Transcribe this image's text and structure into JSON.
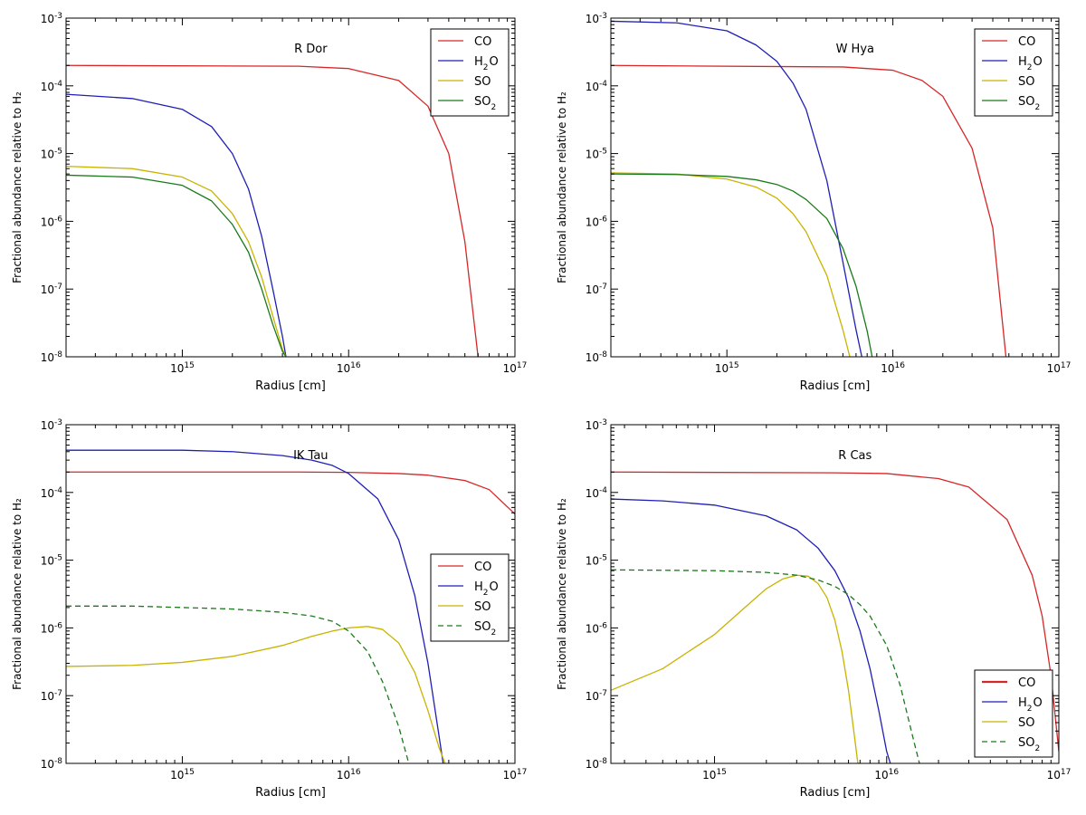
{
  "chart_data": [
    {
      "type": "line",
      "title": "R Dor",
      "xlabel": "Radius [cm]",
      "ylabel": "Fractional abundance relative to H₂",
      "xscale": "log",
      "yscale": "log",
      "xlim": [
        200000000000000.0,
        1e+17
      ],
      "ylim": [
        1e-08,
        0.001
      ],
      "xticks": [
        {
          "mant": "10",
          "exp": "15"
        },
        {
          "mant": "10",
          "exp": "16"
        },
        {
          "mant": "10",
          "exp": "17"
        }
      ],
      "yticks": [
        {
          "mant": "10",
          "exp": "-8"
        },
        {
          "mant": "10",
          "exp": "-7"
        },
        {
          "mant": "10",
          "exp": "-6"
        },
        {
          "mant": "10",
          "exp": "-5"
        },
        {
          "mant": "10",
          "exp": "-4"
        },
        {
          "mant": "10",
          "exp": "-3"
        }
      ],
      "legend_position": "top-right",
      "series": [
        {
          "name": "CO",
          "sub": "",
          "color": "#d62728",
          "dash": "solid",
          "x": [
            200000000000000.0,
            5000000000000000.0,
            1e+16,
            2e+16,
            3e+16,
            4e+16,
            5e+16,
            6e+16
          ],
          "y": [
            0.0002,
            0.000195,
            0.00018,
            0.00012,
            5e-05,
            1e-05,
            5e-07,
            1e-08
          ]
        },
        {
          "name": "H",
          "sub": "2",
          "suffix": "O",
          "color": "#1f1fb4",
          "dash": "solid",
          "x": [
            200000000000000.0,
            500000000000000.0,
            1000000000000000.0,
            1500000000000000.0,
            2000000000000000.0,
            2500000000000000.0,
            3000000000000000.0,
            3500000000000000.0,
            4000000000000000.0,
            4200000000000000.0
          ],
          "y": [
            7.5e-05,
            6.5e-05,
            4.5e-05,
            2.5e-05,
            1e-05,
            3e-06,
            6e-07,
            1e-07,
            2e-08,
            1e-08
          ]
        },
        {
          "name": "SO",
          "sub": "",
          "color": "#c8b400",
          "dash": "solid",
          "x": [
            200000000000000.0,
            500000000000000.0,
            1000000000000000.0,
            1500000000000000.0,
            2000000000000000.0,
            2500000000000000.0,
            3000000000000000.0,
            3500000000000000.0,
            4000000000000000.0,
            4200000000000000.0
          ],
          "y": [
            6.5e-06,
            6e-06,
            4.5e-06,
            2.8e-06,
            1.3e-06,
            5e-07,
            1.5e-07,
            4e-08,
            1.3e-08,
            1e-08
          ]
        },
        {
          "name": "SO",
          "sub": "2",
          "color": "#1a7a1a",
          "dash": "solid",
          "x": [
            200000000000000.0,
            500000000000000.0,
            1000000000000000.0,
            1500000000000000.0,
            2000000000000000.0,
            2500000000000000.0,
            3000000000000000.0,
            3500000000000000.0,
            4000000000000000.0,
            4200000000000000.0
          ],
          "y": [
            4.8e-06,
            4.5e-06,
            3.4e-06,
            2e-06,
            9e-07,
            3.5e-07,
            1e-07,
            3e-08,
            1.2e-08,
            1e-08
          ]
        }
      ]
    },
    {
      "type": "line",
      "title": "W Hya",
      "xlabel": "Radius [cm]",
      "ylabel": "Fractional abundance relative to H₂",
      "xscale": "log",
      "yscale": "log",
      "xlim": [
        200000000000000.0,
        1e+17
      ],
      "ylim": [
        1e-08,
        0.001
      ],
      "xticks": [
        {
          "mant": "10",
          "exp": "15"
        },
        {
          "mant": "10",
          "exp": "16"
        },
        {
          "mant": "10",
          "exp": "17"
        }
      ],
      "yticks": [
        {
          "mant": "10",
          "exp": "-8"
        },
        {
          "mant": "10",
          "exp": "-7"
        },
        {
          "mant": "10",
          "exp": "-6"
        },
        {
          "mant": "10",
          "exp": "-5"
        },
        {
          "mant": "10",
          "exp": "-4"
        },
        {
          "mant": "10",
          "exp": "-3"
        }
      ],
      "legend_position": "top-right",
      "series": [
        {
          "name": "CO",
          "sub": "",
          "color": "#d62728",
          "dash": "solid",
          "x": [
            200000000000000.0,
            5000000000000000.0,
            1e+16,
            1.5e+16,
            2e+16,
            3e+16,
            4e+16,
            4.8e+16
          ],
          "y": [
            0.0002,
            0.00019,
            0.00017,
            0.00012,
            7e-05,
            1.2e-05,
            8e-07,
            1e-08
          ]
        },
        {
          "name": "H",
          "sub": "2",
          "suffix": "O",
          "color": "#1f1fb4",
          "dash": "solid",
          "x": [
            200000000000000.0,
            500000000000000.0,
            1000000000000000.0,
            1500000000000000.0,
            2000000000000000.0,
            2500000000000000.0,
            3000000000000000.0,
            4000000000000000.0,
            5000000000000000.0,
            6000000000000000.0,
            6500000000000000.0
          ],
          "y": [
            0.0009,
            0.00085,
            0.00065,
            0.0004,
            0.00023,
            0.00011,
            4.5e-05,
            4e-06,
            2.5e-07,
            2.5e-08,
            1e-08
          ]
        },
        {
          "name": "SO",
          "sub": "",
          "color": "#c8b400",
          "dash": "solid",
          "x": [
            200000000000000.0,
            500000000000000.0,
            1000000000000000.0,
            1500000000000000.0,
            2000000000000000.0,
            2500000000000000.0,
            3000000000000000.0,
            4000000000000000.0,
            5000000000000000.0,
            5500000000000000.0
          ],
          "y": [
            5.2e-06,
            5e-06,
            4.2e-06,
            3.2e-06,
            2.2e-06,
            1.3e-06,
            7e-07,
            1.6e-07,
            2.5e-08,
            1e-08
          ]
        },
        {
          "name": "SO",
          "sub": "2",
          "color": "#1a7a1a",
          "dash": "solid",
          "x": [
            200000000000000.0,
            500000000000000.0,
            1000000000000000.0,
            1500000000000000.0,
            2000000000000000.0,
            2500000000000000.0,
            3000000000000000.0,
            4000000000000000.0,
            5000000000000000.0,
            6000000000000000.0,
            7000000000000000.0,
            7500000000000000.0
          ],
          "y": [
            5e-06,
            4.9e-06,
            4.6e-06,
            4.1e-06,
            3.5e-06,
            2.8e-06,
            2.1e-06,
            1.1e-06,
            4e-07,
            1.1e-07,
            2.4e-08,
            1e-08
          ]
        }
      ]
    },
    {
      "type": "line",
      "title": "IK Tau",
      "xlabel": "Radius [cm]",
      "ylabel": "Fractional abundance relative to H₂",
      "xscale": "log",
      "yscale": "log",
      "xlim": [
        200000000000000.0,
        1e+17
      ],
      "ylim": [
        1e-08,
        0.001
      ],
      "xticks": [
        {
          "mant": "10",
          "exp": "15"
        },
        {
          "mant": "10",
          "exp": "16"
        },
        {
          "mant": "10",
          "exp": "17"
        }
      ],
      "yticks": [
        {
          "mant": "10",
          "exp": "-8"
        },
        {
          "mant": "10",
          "exp": "-7"
        },
        {
          "mant": "10",
          "exp": "-6"
        },
        {
          "mant": "10",
          "exp": "-5"
        },
        {
          "mant": "10",
          "exp": "-4"
        },
        {
          "mant": "10",
          "exp": "-3"
        }
      ],
      "legend_position": "center-right",
      "series": [
        {
          "name": "CO",
          "sub": "",
          "color": "#d62728",
          "dash": "solid",
          "x": [
            200000000000000.0,
            5000000000000000.0,
            1e+16,
            2e+16,
            3e+16,
            5e+16,
            7e+16,
            1e+17
          ],
          "y": [
            0.0002,
            0.0002,
            0.000198,
            0.00019,
            0.00018,
            0.00015,
            0.00011,
            4.8e-05
          ]
        },
        {
          "name": "H",
          "sub": "2",
          "suffix": "O",
          "color": "#1f1fb4",
          "dash": "solid",
          "x": [
            200000000000000.0,
            1000000000000000.0,
            2000000000000000.0,
            4000000000000000.0,
            6000000000000000.0,
            8000000000000000.0,
            1e+16,
            1.5e+16,
            2e+16,
            2.5e+16,
            3e+16,
            3.5e+16,
            3.7e+16
          ],
          "y": [
            0.00042,
            0.00042,
            0.0004,
            0.00035,
            0.0003,
            0.00025,
            0.00019,
            8e-05,
            2e-05,
            3e-06,
            3e-07,
            2.5e-08,
            1e-08
          ]
        },
        {
          "name": "SO",
          "sub": "",
          "color": "#c8b400",
          "dash": "solid",
          "x": [
            200000000000000.0,
            500000000000000.0,
            1000000000000000.0,
            2000000000000000.0,
            4000000000000000.0,
            6000000000000000.0,
            8000000000000000.0,
            1e+16,
            1.3e+16,
            1.6e+16,
            2e+16,
            2.5e+16,
            3e+16,
            3.5e+16,
            3.8e+16
          ],
          "y": [
            2.7e-07,
            2.8e-07,
            3.1e-07,
            3.8e-07,
            5.5e-07,
            7.5e-07,
            9e-07,
            1e-06,
            1.05e-06,
            9.5e-07,
            6e-07,
            2.2e-07,
            6e-08,
            1.7e-08,
            1e-08
          ]
        },
        {
          "name": "SO",
          "sub": "2",
          "color": "#1a7a1a",
          "dash": "dashed",
          "x": [
            200000000000000.0,
            500000000000000.0,
            1000000000000000.0,
            2000000000000000.0,
            4000000000000000.0,
            6000000000000000.0,
            8000000000000000.0,
            1e+16,
            1.3e+16,
            1.6e+16,
            2e+16,
            2.3e+16
          ],
          "y": [
            2.1e-06,
            2.1e-06,
            2e-06,
            1.9e-06,
            1.7e-06,
            1.5e-06,
            1.25e-06,
            9e-07,
            4.5e-07,
            1.6e-07,
            3.5e-08,
            1e-08
          ]
        }
      ]
    },
    {
      "type": "line",
      "title": "R Cas",
      "xlabel": "Radius [cm]",
      "ylabel": "Fractional abundance relative to H₂",
      "xscale": "log",
      "yscale": "log",
      "xlim": [
        250000000000000.0,
        1e+17
      ],
      "ylim": [
        1e-08,
        0.001
      ],
      "xticks": [
        {
          "mant": "10",
          "exp": "15"
        },
        {
          "mant": "10",
          "exp": "16"
        },
        {
          "mant": "10",
          "exp": "17"
        }
      ],
      "yticks": [
        {
          "mant": "10",
          "exp": "-8"
        },
        {
          "mant": "10",
          "exp": "-7"
        },
        {
          "mant": "10",
          "exp": "-6"
        },
        {
          "mant": "10",
          "exp": "-5"
        },
        {
          "mant": "10",
          "exp": "-4"
        },
        {
          "mant": "10",
          "exp": "-3"
        }
      ],
      "legend_position": "bottom-right",
      "series": [
        {
          "name": "CO",
          "sub": "",
          "color": "#d62728",
          "dash": "solid",
          "x": [
            250000000000000.0,
            5000000000000000.0,
            1e+16,
            2e+16,
            3e+16,
            5e+16,
            7e+16,
            8e+16,
            9e+16,
            1e+17
          ],
          "y": [
            0.0002,
            0.000195,
            0.00019,
            0.00016,
            0.00012,
            4e-05,
            6e-06,
            1.5e-06,
            2e-07,
            1.5e-08
          ]
        },
        {
          "name": "H",
          "sub": "2",
          "suffix": "O",
          "color": "#1f1fb4",
          "dash": "solid",
          "x": [
            250000000000000.0,
            500000000000000.0,
            1000000000000000.0,
            2000000000000000.0,
            3000000000000000.0,
            4000000000000000.0,
            5000000000000000.0,
            6000000000000000.0,
            7000000000000000.0,
            8000000000000000.0,
            9000000000000000.0,
            1e+16,
            1.05e+16
          ],
          "y": [
            8e-05,
            7.5e-05,
            6.5e-05,
            4.5e-05,
            2.8e-05,
            1.5e-05,
            7e-06,
            2.8e-06,
            9e-07,
            2.5e-07,
            6e-08,
            1.5e-08,
            1e-08
          ]
        },
        {
          "name": "SO",
          "sub": "",
          "color": "#c8b400",
          "dash": "solid",
          "x": [
            250000000000000.0,
            500000000000000.0,
            1000000000000000.0,
            1500000000000000.0,
            2000000000000000.0,
            2500000000000000.0,
            3000000000000000.0,
            3500000000000000.0,
            4000000000000000.0,
            4500000000000000.0,
            5000000000000000.0,
            5500000000000000.0,
            6000000000000000.0,
            6500000000000000.0,
            6800000000000000.0
          ],
          "y": [
            1.2e-07,
            2.5e-07,
            8e-07,
            2e-06,
            3.8e-06,
            5.3e-06,
            6e-06,
            5.8e-06,
            4.5e-06,
            2.8e-06,
            1.3e-06,
            4.5e-07,
            1.2e-07,
            2.5e-08,
            1e-08
          ]
        },
        {
          "name": "SO",
          "sub": "2",
          "color": "#1a7a1a",
          "dash": "dashed",
          "x": [
            250000000000000.0,
            500000000000000.0,
            1000000000000000.0,
            2000000000000000.0,
            3000000000000000.0,
            4000000000000000.0,
            5000000000000000.0,
            6000000000000000.0,
            7000000000000000.0,
            8000000000000000.0,
            1e+16,
            1.2e+16,
            1.4e+16,
            1.55e+16
          ],
          "y": [
            7.2e-06,
            7.1e-06,
            7e-06,
            6.6e-06,
            6e-06,
            5.1e-06,
            4.1e-06,
            3.1e-06,
            2.2e-06,
            1.5e-06,
            5.5e-07,
            1.4e-07,
            2.8e-08,
            1e-08
          ]
        }
      ]
    }
  ]
}
